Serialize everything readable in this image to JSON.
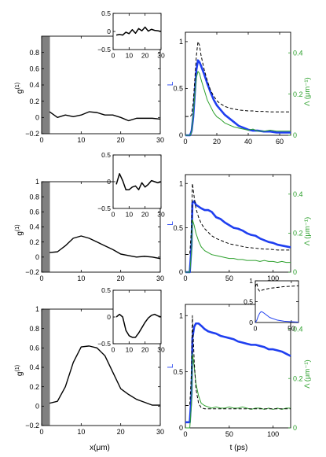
{
  "figure": {
    "x_label": "x(μm)",
    "t_label": "t (ps)"
  },
  "colors": {
    "blue": "#1f3ff0",
    "green": "#2ca02c",
    "black": "#000000",
    "shade": "#808080"
  },
  "chart_data": [
    {
      "id": "g1-top",
      "type": "line",
      "ylabel": "g",
      "ylabel_sup": "(1)",
      "xlim": [
        0,
        30
      ],
      "ylim": [
        -0.2,
        1.0
      ],
      "xticks": [
        0,
        10,
        20,
        30
      ],
      "yticks": [
        -0.2,
        0,
        0.2,
        0.4,
        0.6,
        0.8
      ],
      "shaded_x": [
        0,
        2
      ],
      "series": [
        {
          "color": "black",
          "x": [
            2,
            4,
            6,
            8,
            10,
            12,
            14,
            16,
            18,
            20,
            22,
            24,
            26,
            28,
            30
          ],
          "y": [
            0.07,
            0.0,
            0.03,
            0.01,
            0.03,
            0.07,
            0.06,
            0.03,
            0.03,
            0.0,
            -0.04,
            -0.01,
            -0.01,
            -0.01,
            -0.02
          ]
        }
      ],
      "inset": {
        "xlim": [
          0,
          30
        ],
        "ylim": [
          -0.5,
          0.5
        ],
        "xticks": [
          0,
          10,
          20,
          30
        ],
        "yticks": [
          -0.5,
          0,
          0.5
        ],
        "series": [
          {
            "color": "black",
            "x": [
              2,
              4,
              6,
              8,
              10,
              12,
              14,
              16,
              18,
              20,
              22,
              24,
              26,
              28,
              30
            ],
            "y": [
              -0.1,
              -0.08,
              -0.1,
              -0.02,
              -0.06,
              0.05,
              -0.05,
              0.08,
              0.02,
              0.12,
              0.01,
              0.06,
              0.03,
              0.02,
              0.0
            ]
          }
        ]
      }
    },
    {
      "id": "g1-mid",
      "type": "line",
      "ylabel": "g",
      "ylabel_sup": "(1)",
      "xlim": [
        0,
        30
      ],
      "ylim": [
        -0.2,
        1.0
      ],
      "xticks": [
        0,
        10,
        20,
        30
      ],
      "yticks": [
        -0.2,
        0,
        0.2,
        0.4,
        0.6,
        0.8,
        1
      ],
      "shaded_x": [
        0,
        2
      ],
      "series": [
        {
          "color": "black",
          "x": [
            2,
            4,
            6,
            8,
            10,
            12,
            14,
            16,
            18,
            20,
            22,
            24,
            26,
            28,
            30
          ],
          "y": [
            0.06,
            0.07,
            0.15,
            0.25,
            0.28,
            0.25,
            0.2,
            0.15,
            0.1,
            0.04,
            0.02,
            0.0,
            0.01,
            0.0,
            -0.02
          ]
        }
      ],
      "inset": {
        "xlim": [
          0,
          30
        ],
        "ylim": [
          -0.5,
          0.5
        ],
        "xticks": [
          0,
          10,
          20,
          30
        ],
        "yticks": [
          -0.5,
          0,
          0.5
        ],
        "series": [
          {
            "color": "black",
            "x": [
              2,
              4,
              6,
              8,
              10,
              12,
              14,
              16,
              18,
              20,
              22,
              24,
              26,
              28,
              30
            ],
            "y": [
              -0.05,
              0.15,
              0.02,
              -0.15,
              -0.15,
              -0.1,
              -0.08,
              -0.15,
              -0.02,
              -0.1,
              -0.05,
              0.02,
              0.0,
              -0.02,
              0.0
            ]
          }
        ]
      }
    },
    {
      "id": "g1-bot",
      "type": "line",
      "ylabel": "g",
      "ylabel_sup": "(1)",
      "xlabel": "x(μm)",
      "xlim": [
        0,
        30
      ],
      "ylim": [
        -0.2,
        1.0
      ],
      "xticks": [
        0,
        10,
        20,
        30
      ],
      "yticks": [
        -0.2,
        0,
        0.2,
        0.4,
        0.6,
        0.8,
        1
      ],
      "shaded_x": [
        0,
        2
      ],
      "series": [
        {
          "color": "black",
          "x": [
            2,
            4,
            6,
            8,
            10,
            12,
            14,
            16,
            18,
            20,
            22,
            24,
            26,
            28,
            30
          ],
          "y": [
            0.03,
            0.05,
            0.2,
            0.45,
            0.61,
            0.62,
            0.6,
            0.52,
            0.35,
            0.18,
            0.12,
            0.07,
            0.04,
            0.01,
            0.01
          ]
        }
      ],
      "inset": {
        "xlim": [
          0,
          30
        ],
        "ylim": [
          -0.5,
          0.5
        ],
        "xticks": [
          0,
          10,
          20,
          30
        ],
        "yticks": [
          -0.5,
          0,
          0.5
        ],
        "series": [
          {
            "color": "black",
            "x": [
              2,
              4,
              6,
              8,
              10,
              12,
              14,
              16,
              18,
              20,
              22,
              24,
              26,
              28,
              30
            ],
            "y": [
              0.0,
              0.05,
              0.0,
              -0.25,
              -0.35,
              -0.38,
              -0.38,
              -0.3,
              -0.2,
              -0.1,
              -0.02,
              0.03,
              0.05,
              0.02,
              0.0
            ]
          }
        ]
      }
    },
    {
      "id": "L-top",
      "type": "line",
      "ylabel_left": "L",
      "ylabel_right": "Λ (μm⁻¹)",
      "xlim": [
        0,
        67
      ],
      "ylim": [
        0,
        1.1
      ],
      "ylim_right": [
        0,
        0.5
      ],
      "xticks": [
        0,
        20,
        40,
        60
      ],
      "yticks": [
        0,
        0.5,
        1
      ],
      "yticks_right": [
        0,
        0.2,
        0.4
      ],
      "series": [
        {
          "name": "",
          "color": "blue",
          "width": 2.6,
          "axis": "left",
          "x": [
            0,
            3,
            4,
            5,
            6,
            7,
            8,
            9,
            10,
            12,
            14,
            16,
            18,
            20,
            22,
            25,
            28,
            31,
            34,
            37,
            40,
            43,
            46,
            50,
            54,
            58,
            62,
            67
          ],
          "y": [
            0.0,
            0.0,
            0.05,
            0.2,
            0.45,
            0.7,
            0.8,
            0.78,
            0.74,
            0.65,
            0.55,
            0.46,
            0.38,
            0.32,
            0.28,
            0.22,
            0.18,
            0.14,
            0.1,
            0.08,
            0.06,
            0.05,
            0.05,
            0.04,
            0.04,
            0.03,
            0.03,
            0.03
          ]
        },
        {
          "name": "",
          "color": "green",
          "width": 1.0,
          "axis": "right",
          "x": [
            0,
            3,
            4,
            5,
            6,
            7,
            8,
            9,
            10,
            12,
            14,
            16,
            18,
            20,
            22,
            25,
            28,
            31,
            34,
            37,
            40,
            43,
            46,
            50,
            54,
            58,
            62,
            67
          ],
          "y": [
            0.0,
            0.0,
            0.02,
            0.1,
            0.2,
            0.28,
            0.31,
            0.3,
            0.27,
            0.22,
            0.17,
            0.14,
            0.11,
            0.09,
            0.08,
            0.06,
            0.05,
            0.04,
            0.035,
            0.03,
            0.025,
            0.03,
            0.02,
            0.02,
            0.025,
            0.02,
            0.02,
            0.02
          ]
        },
        {
          "name": "",
          "color": "black",
          "width": 1.0,
          "dash": true,
          "axis": "left",
          "x": [
            0,
            3,
            4,
            5,
            6,
            7,
            8,
            9,
            10,
            12,
            14,
            16,
            18,
            20,
            22,
            25,
            28,
            31,
            34,
            37,
            40,
            43,
            46,
            50,
            54,
            58,
            62,
            67
          ],
          "y": [
            0.2,
            0.2,
            0.22,
            0.35,
            0.6,
            0.85,
            1.0,
            0.96,
            0.85,
            0.7,
            0.58,
            0.48,
            0.42,
            0.37,
            0.34,
            0.31,
            0.29,
            0.28,
            0.27,
            0.265,
            0.26,
            0.26,
            0.255,
            0.255,
            0.25,
            0.25,
            0.25,
            0.25
          ]
        }
      ]
    },
    {
      "id": "L-mid",
      "type": "line",
      "ylabel_left": "L",
      "ylabel_right": "Λ (μm⁻¹)",
      "xlim": [
        0,
        120
      ],
      "ylim": [
        0,
        1.1
      ],
      "ylim_right": [
        0,
        0.5
      ],
      "xticks": [
        0,
        50,
        100
      ],
      "yticks": [
        0,
        0.5,
        1
      ],
      "yticks_right": [
        0,
        0.2,
        0.4
      ],
      "series": [
        {
          "name": "",
          "color": "blue",
          "width": 2.6,
          "axis": "left",
          "x": [
            0,
            5,
            7,
            8,
            10,
            12,
            15,
            18,
            22,
            26,
            30,
            35,
            40,
            45,
            50,
            55,
            60,
            65,
            70,
            75,
            80,
            85,
            90,
            95,
            100,
            105,
            110,
            115,
            120
          ],
          "y": [
            0.0,
            0.0,
            0.3,
            0.78,
            0.8,
            0.76,
            0.74,
            0.72,
            0.7,
            0.7,
            0.68,
            0.62,
            0.6,
            0.56,
            0.53,
            0.5,
            0.49,
            0.47,
            0.44,
            0.42,
            0.41,
            0.38,
            0.36,
            0.34,
            0.33,
            0.31,
            0.3,
            0.29,
            0.28
          ]
        },
        {
          "name": "",
          "color": "green",
          "width": 1.0,
          "axis": "right",
          "x": [
            0,
            5,
            7,
            8,
            10,
            12,
            15,
            18,
            22,
            26,
            30,
            35,
            40,
            45,
            50,
            55,
            60,
            65,
            70,
            75,
            80,
            85,
            90,
            95,
            100,
            105,
            110,
            115,
            120
          ],
          "y": [
            0.0,
            0.0,
            0.1,
            0.27,
            0.24,
            0.2,
            0.16,
            0.13,
            0.11,
            0.1,
            0.09,
            0.085,
            0.08,
            0.075,
            0.07,
            0.07,
            0.065,
            0.065,
            0.06,
            0.06,
            0.06,
            0.055,
            0.06,
            0.055,
            0.055,
            0.05,
            0.055,
            0.05,
            0.05
          ]
        },
        {
          "name": "",
          "color": "black",
          "width": 1.0,
          "dash": true,
          "axis": "left",
          "x": [
            0,
            5,
            7,
            8,
            10,
            12,
            15,
            18,
            22,
            26,
            30,
            35,
            40,
            45,
            50,
            55,
            60,
            65,
            70,
            75,
            80,
            85,
            90,
            95,
            100,
            105,
            110,
            115,
            120
          ],
          "y": [
            0.2,
            0.2,
            0.5,
            1.0,
            0.85,
            0.72,
            0.62,
            0.55,
            0.49,
            0.45,
            0.41,
            0.38,
            0.36,
            0.34,
            0.32,
            0.31,
            0.3,
            0.29,
            0.28,
            0.275,
            0.27,
            0.265,
            0.26,
            0.26,
            0.255,
            0.25,
            0.25,
            0.25,
            0.25
          ]
        }
      ]
    },
    {
      "id": "L-bot",
      "type": "line",
      "ylabel_left": "L",
      "ylabel_right": "Λ (μm⁻¹)",
      "xlabel": "t (ps)",
      "xlim": [
        0,
        120
      ],
      "ylim": [
        0,
        1.1
      ],
      "ylim_right": [
        0,
        0.5
      ],
      "xticks": [
        0,
        50,
        100
      ],
      "yticks": [
        0,
        0.5,
        1
      ],
      "yticks_right": [
        0,
        0.2,
        0.4
      ],
      "series": [
        {
          "name": "",
          "color": "blue",
          "width": 2.6,
          "axis": "left",
          "x": [
            0,
            5,
            7,
            8,
            10,
            12,
            15,
            18,
            22,
            26,
            30,
            35,
            40,
            45,
            50,
            55,
            60,
            65,
            70,
            75,
            80,
            85,
            90,
            95,
            100,
            105,
            110,
            115,
            120
          ],
          "y": [
            0.05,
            0.05,
            0.3,
            0.8,
            0.9,
            0.93,
            0.93,
            0.91,
            0.88,
            0.86,
            0.85,
            0.84,
            0.82,
            0.81,
            0.8,
            0.79,
            0.77,
            0.76,
            0.75,
            0.74,
            0.74,
            0.73,
            0.72,
            0.7,
            0.7,
            0.69,
            0.68,
            0.66,
            0.64
          ]
        },
        {
          "name": "",
          "color": "green",
          "width": 1.0,
          "axis": "right",
          "x": [
            0,
            5,
            7,
            8,
            10,
            12,
            15,
            18,
            22,
            26,
            30,
            35,
            40,
            45,
            50,
            55,
            60,
            65,
            70,
            75,
            80,
            85,
            90,
            95,
            100,
            105,
            110,
            115,
            120
          ],
          "y": [
            0.0,
            0.0,
            0.1,
            0.3,
            0.25,
            0.18,
            0.13,
            0.1,
            0.09,
            0.085,
            0.08,
            0.085,
            0.08,
            0.08,
            0.085,
            0.08,
            0.08,
            0.085,
            0.08,
            0.075,
            0.08,
            0.08,
            0.075,
            0.08,
            0.075,
            0.08,
            0.075,
            0.08,
            0.08
          ]
        },
        {
          "name": "",
          "color": "black",
          "width": 1.0,
          "dash": true,
          "axis": "left",
          "x": [
            0,
            5,
            7,
            8,
            10,
            12,
            15,
            18,
            22,
            26,
            30,
            35,
            40,
            45,
            50,
            55,
            60,
            65,
            70,
            75,
            80,
            85,
            90,
            95,
            100,
            105,
            110,
            115,
            120
          ],
          "y": [
            0.2,
            0.2,
            0.5,
            1.0,
            0.6,
            0.35,
            0.22,
            0.18,
            0.17,
            0.17,
            0.17,
            0.17,
            0.17,
            0.17,
            0.17,
            0.17,
            0.17,
            0.17,
            0.17,
            0.17,
            0.17,
            0.17,
            0.17,
            0.17,
            0.17,
            0.17,
            0.17,
            0.17,
            0.17
          ]
        }
      ],
      "inset": {
        "xlim": [
          0,
          60
        ],
        "ylim": [
          0,
          1
        ],
        "xticks": [
          0,
          50
        ],
        "yticks": [
          0,
          0.5,
          1
        ],
        "series": [
          {
            "color": "black",
            "dash": true,
            "x": [
              0,
              2,
              4,
              6,
              10,
              15,
              20,
              30,
              40,
              50,
              60
            ],
            "y": [
              0.85,
              0.95,
              0.8,
              0.75,
              0.78,
              0.8,
              0.82,
              0.84,
              0.86,
              0.87,
              0.88
            ]
          },
          {
            "color": "blue",
            "x": [
              0,
              2,
              4,
              6,
              8,
              10,
              14,
              20,
              30,
              40,
              50,
              60
            ],
            "y": [
              0.0,
              0.05,
              0.15,
              0.22,
              0.26,
              0.25,
              0.2,
              0.12,
              0.06,
              0.03,
              0.02,
              0.01
            ]
          }
        ]
      }
    }
  ]
}
